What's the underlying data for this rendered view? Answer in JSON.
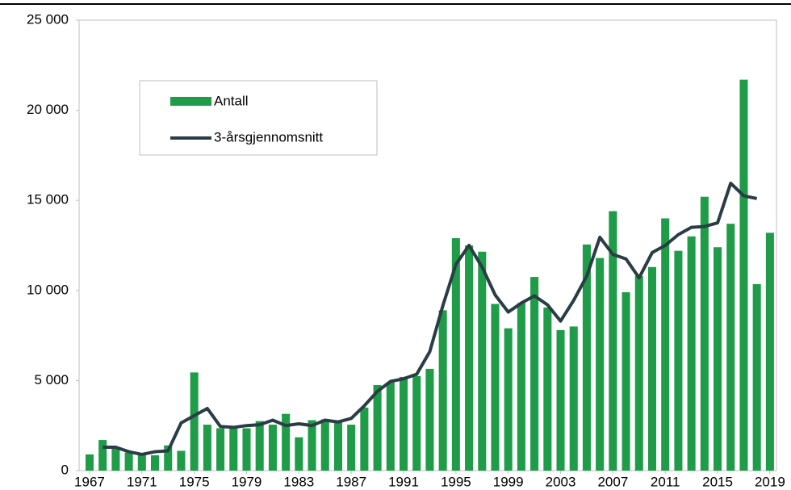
{
  "chart_data": {
    "type": "bar-line",
    "x": [
      1967,
      1968,
      1969,
      1970,
      1971,
      1972,
      1973,
      1974,
      1975,
      1976,
      1977,
      1978,
      1979,
      1980,
      1981,
      1982,
      1983,
      1984,
      1985,
      1986,
      1987,
      1988,
      1989,
      1990,
      1991,
      1992,
      1993,
      1994,
      1995,
      1996,
      1997,
      1998,
      1999,
      2000,
      2001,
      2002,
      2003,
      2004,
      2005,
      2006,
      2007,
      2008,
      2009,
      2010,
      2011,
      2012,
      2013,
      2014,
      2015,
      2016,
      2017,
      2018,
      2019
    ],
    "series": [
      {
        "name": "Antall",
        "color": "#1e9c48",
        "kind": "bar",
        "values": [
          900,
          1700,
          1300,
          1000,
          900,
          850,
          1400,
          1100,
          5450,
          2550,
          2350,
          2400,
          2350,
          2750,
          2550,
          3150,
          1850,
          2800,
          2850,
          2700,
          2550,
          3500,
          4750,
          4900,
          5200,
          5250,
          5650,
          8900,
          12900,
          12500,
          12150,
          9250,
          7900,
          9300,
          10750,
          9050,
          7800,
          8000,
          12550,
          11800,
          14400,
          9900,
          10800,
          11300,
          14000,
          12200,
          13000,
          15200,
          12400,
          13700,
          21700,
          10350,
          13200
        ]
      },
      {
        "name": "3-årsgjennomsnitt",
        "color": "#2a3d45",
        "kind": "line",
        "values": [
          null,
          1300,
          1300,
          1050,
          900,
          1050,
          1100,
          2650,
          3050,
          3450,
          2450,
          2400,
          2500,
          2550,
          2800,
          2500,
          2600,
          2500,
          2800,
          2700,
          2900,
          3600,
          4400,
          4950,
          5100,
          5350,
          6600,
          9150,
          11450,
          12500,
          11300,
          9750,
          8800,
          9300,
          9700,
          9200,
          8300,
          9450,
          10800,
          12950,
          12000,
          11750,
          10700,
          12100,
          12500,
          13100,
          13500,
          13550,
          13750,
          15950,
          15250,
          15100,
          null
        ]
      }
    ],
    "xlim": [
      1966.2,
      2019.5
    ],
    "xticks": [
      1967,
      1971,
      1975,
      1979,
      1983,
      1987,
      1991,
      1995,
      1999,
      2003,
      2007,
      2011,
      2015,
      2019
    ],
    "ylim": [
      0,
      25000
    ],
    "yticks": [
      0,
      {
        "value": 5000,
        "label": "5 000"
      },
      {
        "value": 10000,
        "label": "10 000"
      },
      {
        "value": 15000,
        "label": "15 000"
      },
      {
        "value": 20000,
        "label": "20 000"
      },
      {
        "value": 25000,
        "label": "25 000"
      }
    ],
    "grid": false
  }
}
